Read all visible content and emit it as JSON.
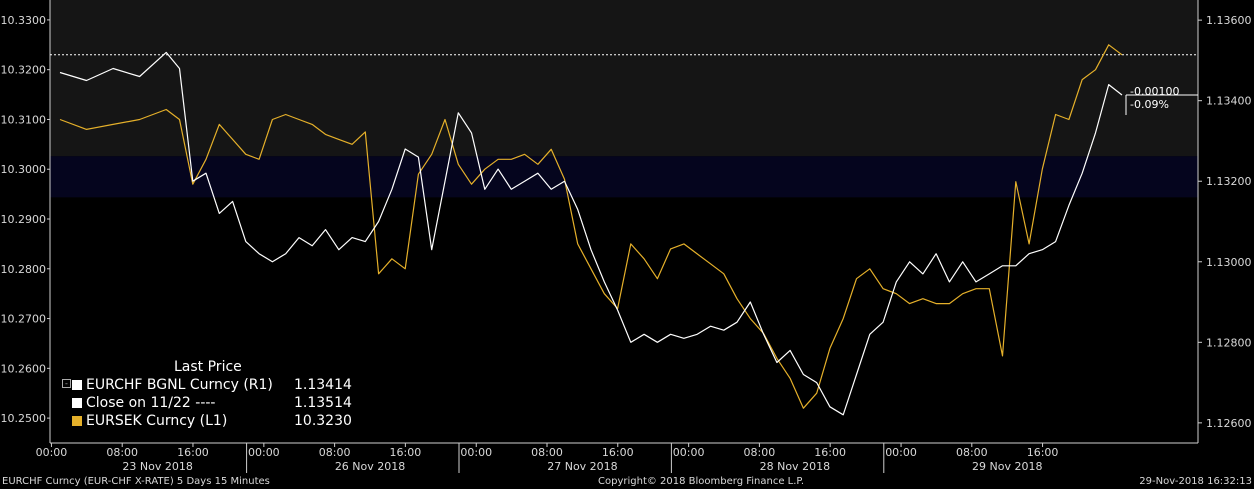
{
  "chart_data": {
    "type": "line",
    "title": "",
    "left_axis": {
      "ylim": [
        10.245,
        10.334
      ],
      "ticks": [
        "10.3300",
        "10.3200",
        "10.3100",
        "10.3000",
        "10.2900",
        "10.2800",
        "10.2700",
        "10.2600",
        "10.2500"
      ]
    },
    "right_axis": {
      "ylim": [
        1.1255,
        1.1365
      ],
      "ticks": [
        "1.13600",
        "1.13400",
        "1.13200",
        "1.13000",
        "1.12800",
        "1.12600"
      ]
    },
    "x_hour_labels": [
      "00:00",
      "08:00",
      "16:00",
      "00:00",
      "08:00",
      "16:00",
      "00:00",
      "08:00",
      "16:00",
      "00:00",
      "08:00",
      "16:00",
      "00:00",
      "08:00",
      "16:00"
    ],
    "x_day_labels": [
      "23 Nov 2018",
      "26 Nov 2018",
      "27 Nov 2018",
      "28 Nov 2018",
      "29 Nov 2018"
    ],
    "shaded_band": {
      "axis": "right",
      "from": 1.1316,
      "to": 1.13262
    },
    "series": [
      {
        "name": "EURCHF BGNL Curncy",
        "axis": "right",
        "color": "#ffffff",
        "x": [
          0,
          2,
          4,
          6,
          8,
          9,
          10,
          11,
          12,
          13,
          14,
          15,
          16,
          17,
          18,
          19,
          20,
          21,
          22,
          23,
          24,
          25,
          26,
          27,
          28,
          29,
          30,
          31,
          32,
          33,
          34,
          35,
          36,
          37,
          38,
          39,
          40,
          41,
          42,
          43,
          44,
          45,
          46,
          47,
          48,
          49,
          50,
          51,
          52,
          53,
          54,
          55,
          56,
          57,
          58,
          59,
          60,
          61,
          62,
          63,
          64,
          65,
          66,
          67,
          68,
          69,
          70,
          71,
          72,
          73,
          74,
          75,
          76,
          77,
          78,
          79,
          80
        ],
        "y": [
          1.1347,
          1.1345,
          1.1348,
          1.1346,
          1.1352,
          1.1348,
          1.132,
          1.1322,
          1.1312,
          1.1315,
          1.1305,
          1.1302,
          1.13,
          1.1302,
          1.1306,
          1.1304,
          1.1308,
          1.1303,
          1.1306,
          1.1305,
          1.131,
          1.1318,
          1.1328,
          1.1326,
          1.1303,
          1.132,
          1.1337,
          1.1332,
          1.1318,
          1.1323,
          1.1318,
          1.132,
          1.1322,
          1.1318,
          1.132,
          1.1313,
          1.1303,
          1.1295,
          1.1288,
          1.128,
          1.1282,
          1.128,
          1.1282,
          1.1281,
          1.1282,
          1.1284,
          1.1283,
          1.1285,
          1.129,
          1.1282,
          1.1275,
          1.1278,
          1.1272,
          1.127,
          1.1264,
          1.1262,
          1.1272,
          1.1282,
          1.1285,
          1.1295,
          1.13,
          1.1297,
          1.1302,
          1.1295,
          1.13,
          1.1295,
          1.1297,
          1.1299,
          1.1299,
          1.1302,
          1.1303,
          1.1305,
          1.1314,
          1.1322,
          1.1332,
          1.1344,
          1.13414
        ]
      },
      {
        "name": "Close on 11/22",
        "axis": "right",
        "color": "#ffffff",
        "style": "dotted",
        "value": 1.13514
      },
      {
        "name": "EURSEK Curncy",
        "axis": "left",
        "color": "#e5b02a",
        "x": [
          0,
          2,
          4,
          6,
          8,
          9,
          10,
          11,
          12,
          13,
          14,
          15,
          16,
          17,
          18,
          19,
          20,
          21,
          22,
          23,
          24,
          25,
          26,
          27,
          28,
          29,
          30,
          31,
          32,
          33,
          34,
          35,
          36,
          37,
          38,
          39,
          40,
          41,
          42,
          43,
          44,
          45,
          46,
          47,
          48,
          49,
          50,
          51,
          52,
          53,
          54,
          55,
          56,
          57,
          58,
          59,
          60,
          61,
          62,
          63,
          64,
          65,
          66,
          67,
          68,
          69,
          70,
          71,
          72,
          73,
          74,
          75,
          76,
          77,
          78,
          79,
          80
        ],
        "y": [
          10.31,
          10.308,
          10.309,
          10.31,
          10.312,
          10.31,
          10.297,
          10.302,
          10.309,
          10.306,
          10.303,
          10.302,
          10.31,
          10.311,
          10.31,
          10.309,
          10.307,
          10.306,
          10.305,
          10.3075,
          10.279,
          10.282,
          10.28,
          10.299,
          10.303,
          10.31,
          10.301,
          10.297,
          10.3,
          10.302,
          10.302,
          10.303,
          10.301,
          10.304,
          10.298,
          10.285,
          10.28,
          10.275,
          10.272,
          10.285,
          10.282,
          10.278,
          10.284,
          10.285,
          10.283,
          10.281,
          10.279,
          10.274,
          10.27,
          10.267,
          10.262,
          10.258,
          10.252,
          10.255,
          10.264,
          10.27,
          10.278,
          10.28,
          10.276,
          10.275,
          10.273,
          10.274,
          10.273,
          10.273,
          10.275,
          10.276,
          10.276,
          10.2625,
          10.2975,
          10.285,
          10.3,
          10.311,
          10.31,
          10.318,
          10.32,
          10.325,
          10.323
        ]
      }
    ],
    "legend": {
      "header": "Last Price",
      "entries": [
        {
          "name": "EURCHF BGNL Curncy",
          "suffix": "(R1)",
          "value": "1.13414",
          "color": "#ffffff"
        },
        {
          "name": "Close on 11/22 ----",
          "suffix": "",
          "value": "1.13514",
          "color": "#ffffff"
        },
        {
          "name": "EURSEK Curncy",
          "suffix": "(L1)",
          "value": "10.3230",
          "color": "#e5b02a"
        }
      ]
    },
    "change_annotation": {
      "abs": "-0.00100",
      "pct": "-0.09%"
    }
  },
  "footer": {
    "left": "EURCHF Curncy (EUR-CHF X-RATE)  5 Days 15 Minutes",
    "center": "Copyright© 2018 Bloomberg Finance L.P.",
    "right": "29-Nov-2018 16:32:13"
  },
  "colors": {
    "background": "#000000",
    "upper_fill": "#151515",
    "band_fill": "#05051e",
    "eurchf": "#ffffff",
    "eursek": "#e5b02a"
  }
}
